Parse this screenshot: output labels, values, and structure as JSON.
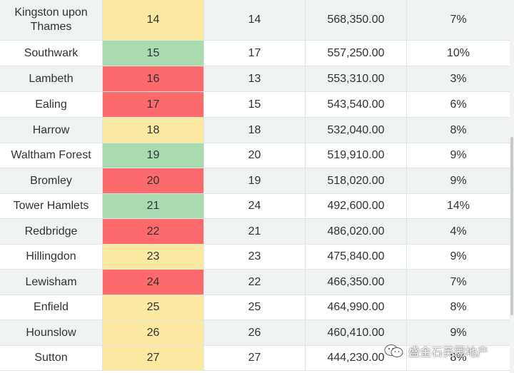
{
  "table": {
    "rows": [
      {
        "name": "Kingston upon Thames",
        "rank": "14",
        "previous": "14",
        "price": "568,350.00",
        "change": "7%",
        "rank_color": "yellow"
      },
      {
        "name": "Southwark",
        "rank": "15",
        "previous": "17",
        "price": "557,250.00",
        "change": "10%",
        "rank_color": "green"
      },
      {
        "name": "Lambeth",
        "rank": "16",
        "previous": "13",
        "price": "553,310.00",
        "change": "3%",
        "rank_color": "red"
      },
      {
        "name": "Ealing",
        "rank": "17",
        "previous": "15",
        "price": "543,540.00",
        "change": "6%",
        "rank_color": "red"
      },
      {
        "name": "Harrow",
        "rank": "18",
        "previous": "18",
        "price": "532,040.00",
        "change": "8%",
        "rank_color": "yellow"
      },
      {
        "name": "Waltham Forest",
        "rank": "19",
        "previous": "20",
        "price": "519,910.00",
        "change": "9%",
        "rank_color": "green"
      },
      {
        "name": "Bromley",
        "rank": "20",
        "previous": "19",
        "price": "518,020.00",
        "change": "9%",
        "rank_color": "red"
      },
      {
        "name": "Tower Hamlets",
        "rank": "21",
        "previous": "24",
        "price": "492,600.00",
        "change": "14%",
        "rank_color": "green"
      },
      {
        "name": "Redbridge",
        "rank": "22",
        "previous": "21",
        "price": "486,020.00",
        "change": "4%",
        "rank_color": "red"
      },
      {
        "name": "Hillingdon",
        "rank": "23",
        "previous": "23",
        "price": "475,840.00",
        "change": "9%",
        "rank_color": "yellow"
      },
      {
        "name": "Lewisham",
        "rank": "24",
        "previous": "22",
        "price": "466,350.00",
        "change": "7%",
        "rank_color": "red"
      },
      {
        "name": "Enfield",
        "rank": "25",
        "previous": "25",
        "price": "464,990.00",
        "change": "8%",
        "rank_color": "yellow"
      },
      {
        "name": "Hounslow",
        "rank": "26",
        "previous": "26",
        "price": "460,410.00",
        "change": "9%",
        "rank_color": "yellow"
      },
      {
        "name": "Sutton",
        "rank": "27",
        "previous": "27",
        "price": "444,230.00",
        "change": "8%",
        "rank_color": "yellow"
      }
    ]
  },
  "colors": {
    "green": "#a8dbb0",
    "yellow": "#fbe9a1",
    "red": "#fd6a6c",
    "stripe": "#eef3f0"
  },
  "watermark": {
    "icon": "wechat-icon",
    "text": "盛金石英国地产"
  }
}
